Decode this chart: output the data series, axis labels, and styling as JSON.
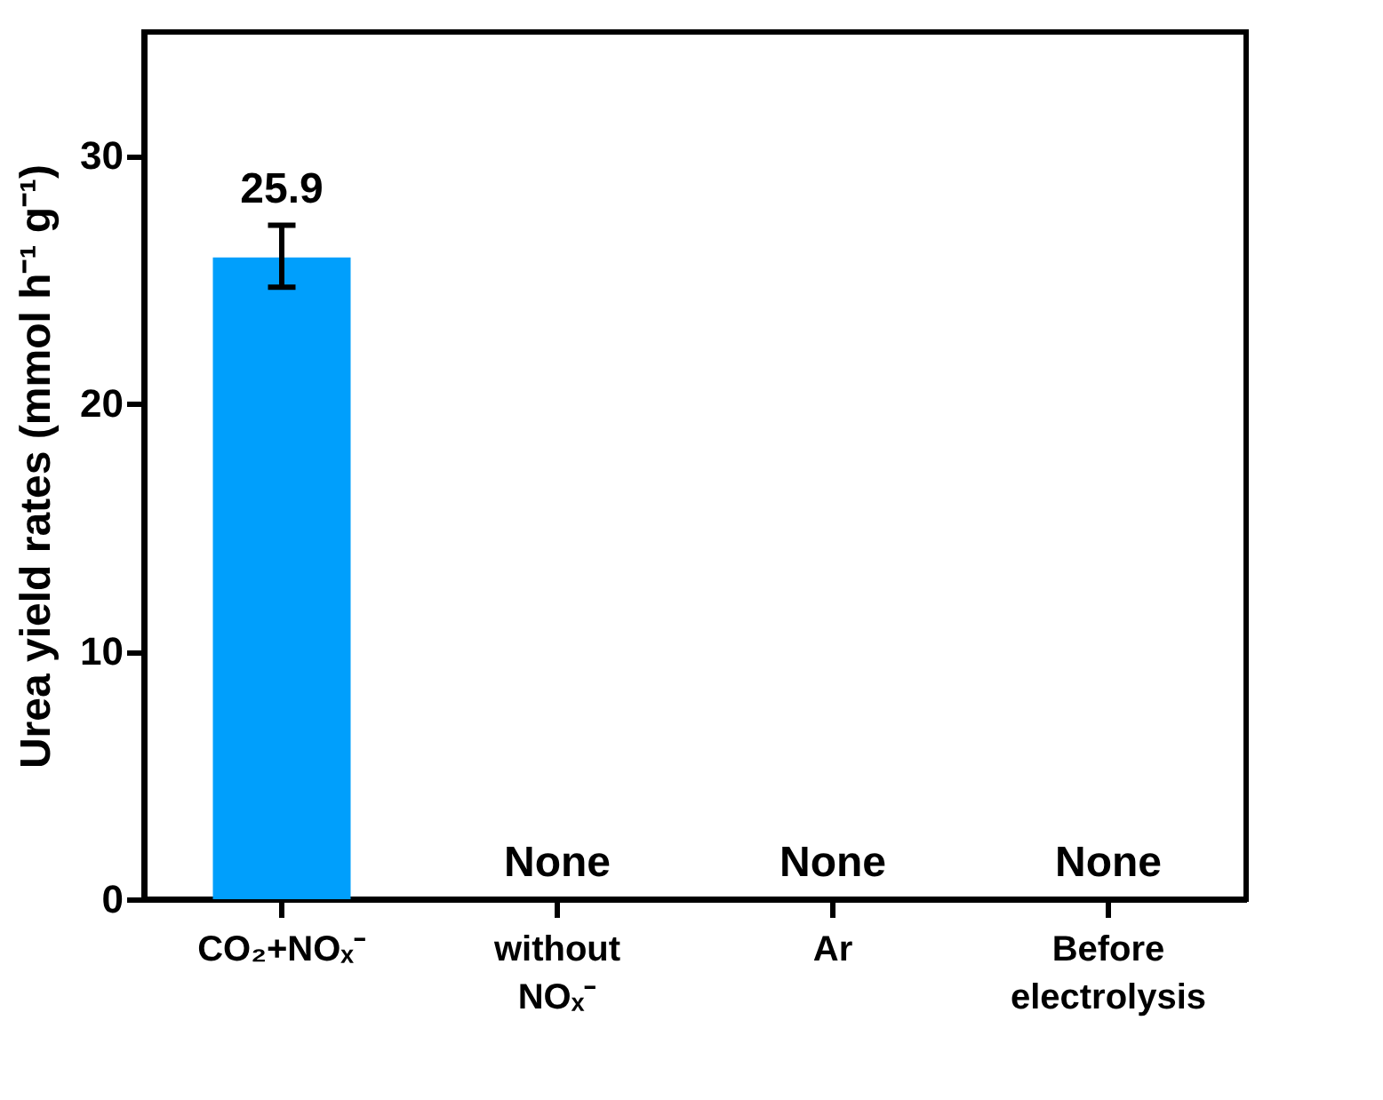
{
  "chart_data": {
    "type": "bar",
    "ylabel": "Urea yield rates (mmol h⁻¹ g⁻¹)",
    "categories": [
      "CO₂+NOₓ⁻",
      "without NOₓ⁻",
      "Ar",
      "Before electrolysis"
    ],
    "values": [
      25.9,
      null,
      null,
      null
    ],
    "errors": [
      [
        24.7,
        27.2
      ],
      null,
      null,
      null
    ],
    "value_labels": [
      "25.9",
      "None",
      "None",
      "None"
    ],
    "color": "#009ffc",
    "ylim": [
      0,
      35
    ],
    "yticks": [
      0,
      10,
      20,
      30
    ],
    "grid": false
  }
}
